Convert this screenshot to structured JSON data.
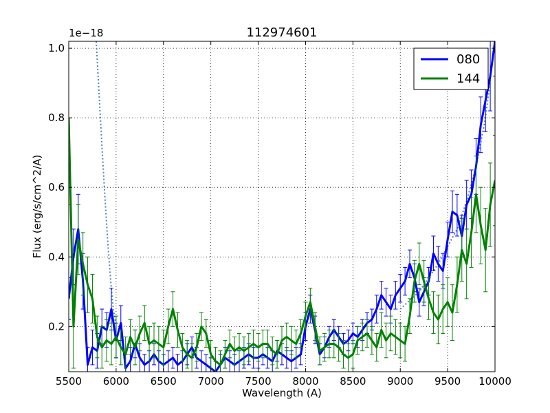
{
  "chart_data": {
    "type": "line",
    "title": "112974601",
    "xlabel": "Wavelength (A)",
    "ylabel": "Flux (erg/s/cm^2/A)",
    "y_offset_label": "1e−18",
    "xlim": [
      5500,
      10000
    ],
    "ylim": [
      0.07,
      1.02
    ],
    "x_ticks": [
      5500,
      6000,
      6500,
      7000,
      7500,
      8000,
      8500,
      9000,
      9500,
      10000
    ],
    "x_tick_labels": [
      "5500",
      "6000",
      "6500",
      "7000",
      "7500",
      "8000",
      "8500",
      "9000",
      "9500",
      "10000"
    ],
    "y_ticks": [
      0.2,
      0.4,
      0.6,
      0.8,
      1.0
    ],
    "y_tick_labels": [
      "0.2",
      "0.4",
      "0.6",
      "0.8",
      "1.0"
    ],
    "grid": true,
    "legend_position": "top-right",
    "series": [
      {
        "name": "080",
        "color": "#0000ff",
        "x": [
          5500,
          5550,
          5600,
          5650,
          5700,
          5750,
          5800,
          5850,
          5900,
          5950,
          6000,
          6050,
          6100,
          6150,
          6200,
          6250,
          6300,
          6350,
          6400,
          6450,
          6500,
          6550,
          6600,
          6650,
          6700,
          6750,
          6800,
          6850,
          6900,
          6950,
          7000,
          7050,
          7100,
          7150,
          7200,
          7250,
          7300,
          7350,
          7400,
          7450,
          7500,
          7550,
          7600,
          7650,
          7700,
          7750,
          7800,
          7850,
          7900,
          7950,
          8000,
          8050,
          8100,
          8150,
          8200,
          8250,
          8300,
          8350,
          8400,
          8450,
          8500,
          8550,
          8600,
          8650,
          8700,
          8750,
          8800,
          8850,
          8900,
          8950,
          9000,
          9050,
          9100,
          9150,
          9200,
          9250,
          9300,
          9350,
          9400,
          9450,
          9500,
          9550,
          9600,
          9650,
          9700,
          9750,
          9800,
          9850,
          9900,
          9950,
          10000
        ],
        "y": [
          0.28,
          0.4,
          0.48,
          0.33,
          0.09,
          0.14,
          0.13,
          0.2,
          0.19,
          0.25,
          0.16,
          0.21,
          0.08,
          0.1,
          0.15,
          0.11,
          0.09,
          0.1,
          0.12,
          0.1,
          0.09,
          0.1,
          0.11,
          0.09,
          0.1,
          0.12,
          0.14,
          0.11,
          0.1,
          0.09,
          0.08,
          0.07,
          0.09,
          0.11,
          0.1,
          0.09,
          0.1,
          0.11,
          0.12,
          0.11,
          0.11,
          0.12,
          0.11,
          0.1,
          0.13,
          0.12,
          0.11,
          0.1,
          0.11,
          0.12,
          0.2,
          0.25,
          0.19,
          0.12,
          0.14,
          0.17,
          0.19,
          0.17,
          0.15,
          0.16,
          0.18,
          0.17,
          0.19,
          0.21,
          0.22,
          0.25,
          0.29,
          0.27,
          0.25,
          0.29,
          0.31,
          0.33,
          0.38,
          0.34,
          0.27,
          0.3,
          0.33,
          0.41,
          0.38,
          0.36,
          0.45,
          0.53,
          0.52,
          0.46,
          0.55,
          0.58,
          0.66,
          0.78,
          0.85,
          0.92,
          1.02
        ],
        "err": [
          0.06,
          0.08,
          0.1,
          0.08,
          0.05,
          0.05,
          0.05,
          0.05,
          0.05,
          0.06,
          0.05,
          0.05,
          0.04,
          0.04,
          0.04,
          0.04,
          0.03,
          0.03,
          0.03,
          0.03,
          0.03,
          0.03,
          0.03,
          0.03,
          0.03,
          0.03,
          0.03,
          0.03,
          0.03,
          0.03,
          0.03,
          0.03,
          0.03,
          0.03,
          0.03,
          0.03,
          0.03,
          0.03,
          0.03,
          0.03,
          0.03,
          0.03,
          0.03,
          0.03,
          0.03,
          0.03,
          0.03,
          0.03,
          0.03,
          0.03,
          0.04,
          0.04,
          0.04,
          0.03,
          0.03,
          0.03,
          0.03,
          0.03,
          0.03,
          0.03,
          0.03,
          0.03,
          0.03,
          0.03,
          0.03,
          0.04,
          0.04,
          0.04,
          0.04,
          0.04,
          0.04,
          0.04,
          0.04,
          0.04,
          0.04,
          0.04,
          0.04,
          0.05,
          0.05,
          0.05,
          0.05,
          0.06,
          0.06,
          0.06,
          0.07,
          0.07,
          0.08,
          0.08,
          0.09,
          0.1,
          0.1
        ]
      },
      {
        "name": "144",
        "color": "#008000",
        "x": [
          5500,
          5550,
          5600,
          5650,
          5700,
          5750,
          5800,
          5850,
          5900,
          5950,
          6000,
          6050,
          6100,
          6150,
          6200,
          6250,
          6300,
          6350,
          6400,
          6450,
          6500,
          6550,
          6600,
          6650,
          6700,
          6750,
          6800,
          6850,
          6900,
          6950,
          7000,
          7050,
          7100,
          7150,
          7200,
          7250,
          7300,
          7350,
          7400,
          7450,
          7500,
          7550,
          7600,
          7650,
          7700,
          7750,
          7800,
          7850,
          7900,
          7950,
          8000,
          8050,
          8100,
          8150,
          8200,
          8250,
          8300,
          8350,
          8400,
          8450,
          8500,
          8550,
          8600,
          8650,
          8700,
          8750,
          8800,
          8850,
          8900,
          8950,
          9000,
          9050,
          9100,
          9150,
          9200,
          9250,
          9300,
          9350,
          9400,
          9450,
          9500,
          9550,
          9600,
          9650,
          9700,
          9750,
          9800,
          9850,
          9900,
          9950,
          10000
        ],
        "y": [
          0.8,
          0.2,
          0.45,
          0.38,
          0.32,
          0.28,
          0.17,
          0.14,
          0.16,
          0.15,
          0.17,
          0.14,
          0.12,
          0.17,
          0.14,
          0.18,
          0.21,
          0.15,
          0.16,
          0.15,
          0.14,
          0.2,
          0.25,
          0.19,
          0.14,
          0.12,
          0.11,
          0.14,
          0.2,
          0.18,
          0.12,
          0.1,
          0.09,
          0.12,
          0.15,
          0.13,
          0.14,
          0.13,
          0.14,
          0.15,
          0.14,
          0.15,
          0.15,
          0.13,
          0.12,
          0.16,
          0.17,
          0.16,
          0.15,
          0.18,
          0.23,
          0.27,
          0.2,
          0.13,
          0.14,
          0.15,
          0.15,
          0.14,
          0.12,
          0.11,
          0.12,
          0.16,
          0.17,
          0.18,
          0.16,
          0.14,
          0.19,
          0.16,
          0.18,
          0.17,
          0.16,
          0.15,
          0.23,
          0.33,
          0.38,
          0.33,
          0.28,
          0.24,
          0.22,
          0.25,
          0.27,
          0.24,
          0.32,
          0.42,
          0.38,
          0.47,
          0.58,
          0.49,
          0.42,
          0.55,
          0.62
        ],
        "err": [
          0.25,
          0.12,
          0.1,
          0.09,
          0.08,
          0.07,
          0.06,
          0.06,
          0.06,
          0.06,
          0.06,
          0.05,
          0.05,
          0.05,
          0.05,
          0.05,
          0.05,
          0.05,
          0.05,
          0.05,
          0.05,
          0.05,
          0.05,
          0.05,
          0.04,
          0.04,
          0.04,
          0.04,
          0.04,
          0.04,
          0.04,
          0.04,
          0.04,
          0.04,
          0.04,
          0.04,
          0.04,
          0.04,
          0.04,
          0.04,
          0.04,
          0.04,
          0.04,
          0.04,
          0.04,
          0.04,
          0.04,
          0.04,
          0.04,
          0.04,
          0.04,
          0.04,
          0.04,
          0.04,
          0.04,
          0.04,
          0.04,
          0.04,
          0.04,
          0.04,
          0.04,
          0.04,
          0.04,
          0.04,
          0.04,
          0.04,
          0.05,
          0.05,
          0.05,
          0.05,
          0.05,
          0.05,
          0.05,
          0.06,
          0.06,
          0.06,
          0.06,
          0.06,
          0.07,
          0.07,
          0.07,
          0.08,
          0.08,
          0.09,
          0.1,
          0.1,
          0.11,
          0.11,
          0.12,
          0.12,
          0.13
        ]
      }
    ],
    "model_curves": [
      {
        "color": "#4a7fbf",
        "style": "dotted",
        "x": [
          5790,
          5820,
          5850,
          5880,
          5910,
          5940,
          5970,
          6000
        ],
        "y": [
          1.02,
          0.87,
          0.72,
          0.58,
          0.45,
          0.34,
          0.25,
          0.2
        ]
      },
      {
        "color": "#4a7fbf",
        "style": "dotted",
        "x": [
          9000,
          9200,
          9400,
          9600,
          9700,
          9800,
          9900,
          10000
        ],
        "y": [
          0.25,
          0.3,
          0.38,
          0.48,
          0.56,
          0.66,
          0.8,
          1.02
        ]
      }
    ]
  }
}
